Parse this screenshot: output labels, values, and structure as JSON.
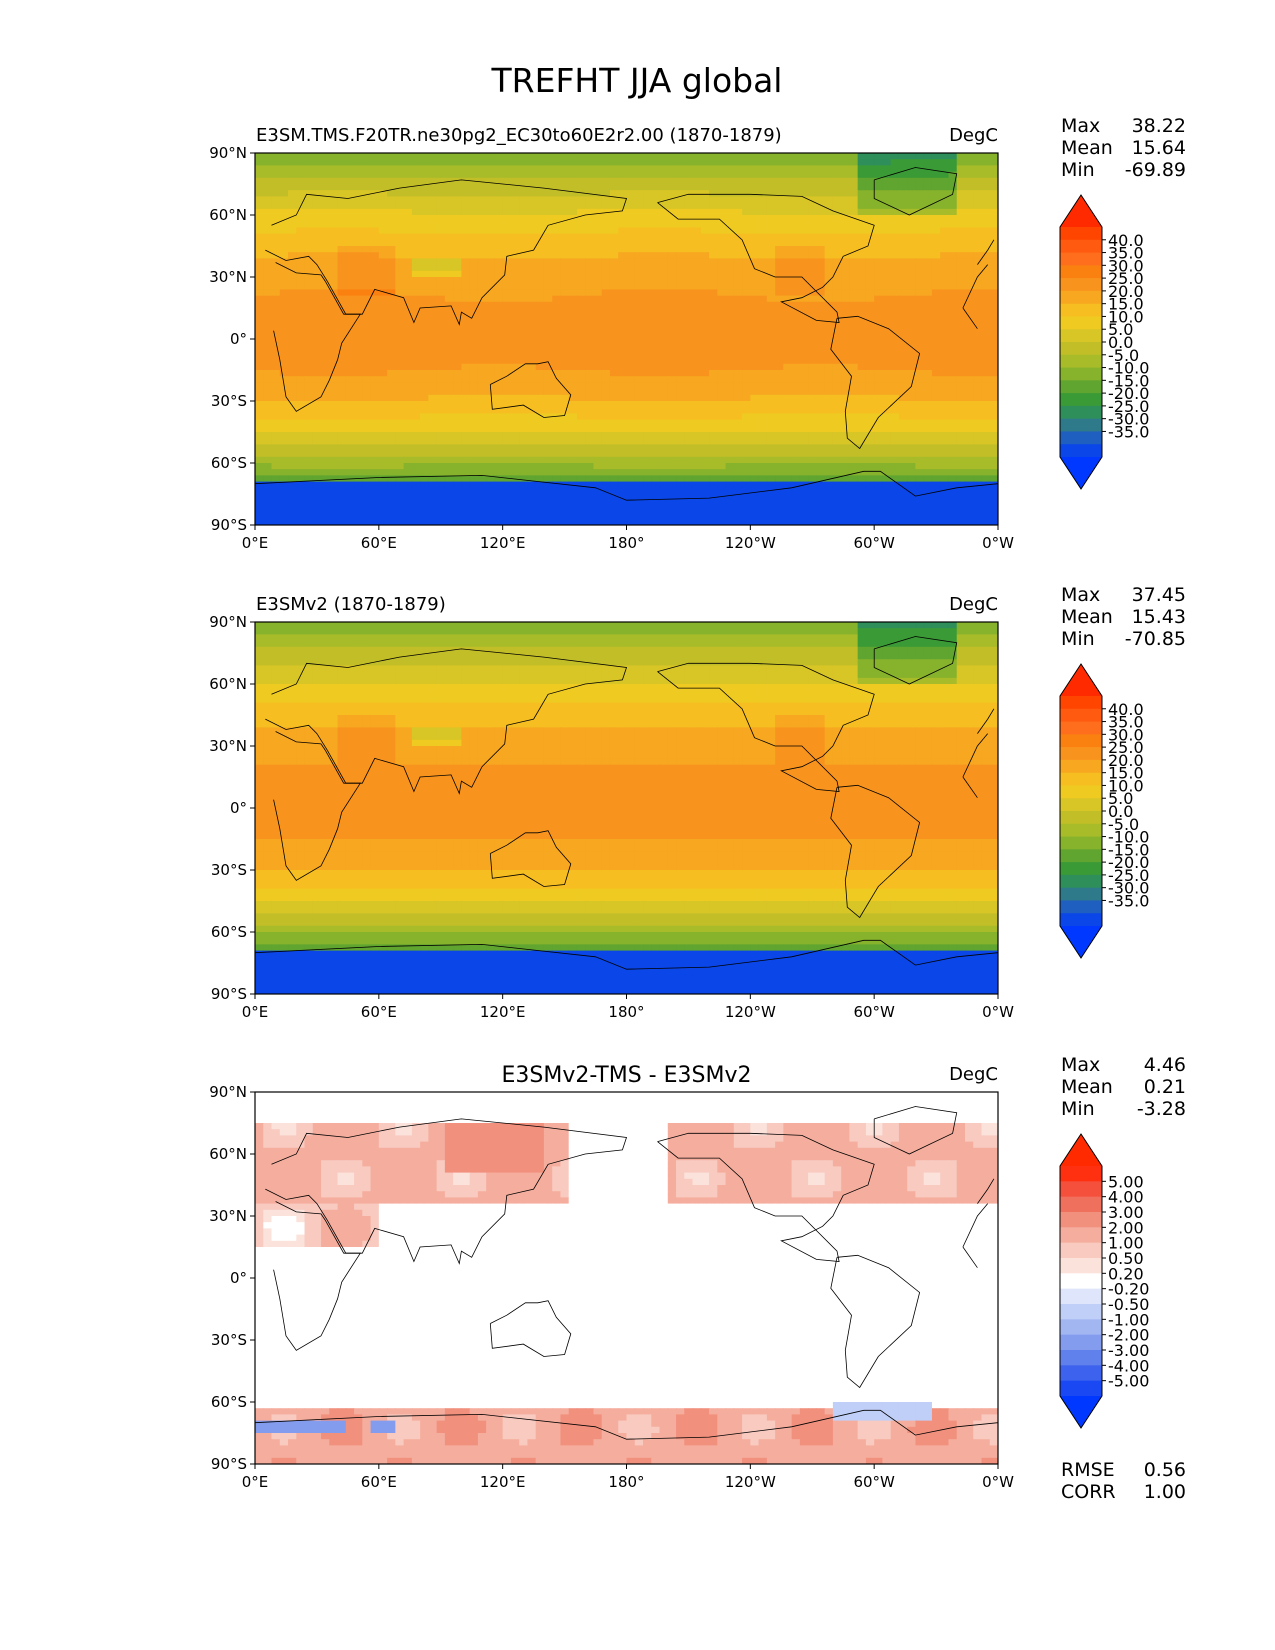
{
  "figure": {
    "title": "TREFHT JJA global"
  },
  "chart_data": [
    {
      "type": "heatmap",
      "title": "E3SM.TMS.F20TR.ne30pg2_EC30to60E2r2.00 (1870-1879)",
      "title_position": "left",
      "units": "DegC",
      "x_ticks": [
        "0°E",
        "60°E",
        "120°E",
        "180°",
        "120°W",
        "60°W",
        "0°W"
      ],
      "y_ticks": [
        "90°N",
        "60°N",
        "30°N",
        "0°",
        "30°S",
        "60°S",
        "90°S"
      ],
      "xlim": [
        0,
        360
      ],
      "ylim": [
        -90,
        90
      ],
      "stats": [
        {
          "label": "Max",
          "value": "38.22"
        },
        {
          "label": "Mean",
          "value": "15.64"
        },
        {
          "label": "Min",
          "value": "-69.89"
        }
      ],
      "colorbar": {
        "labels": [
          "40.0",
          "35.0",
          "30.0",
          "25.0",
          "20.0",
          "15.0",
          "10.0",
          "5.0",
          "0.0",
          "-5.0",
          "-10.0",
          "-15.0",
          "-20.0",
          "-25.0",
          "-30.0",
          "-35.0"
        ],
        "colors": [
          "#ff4500",
          "#ff5a10",
          "#ff6e1c",
          "#fa8010",
          "#f8941e",
          "#f7a720",
          "#f6be20",
          "#efcb22",
          "#d8c526",
          "#c2be28",
          "#a8bc2a",
          "#86b22c",
          "#5fa530",
          "#3a9a36",
          "#2f8f5a",
          "#2f7a8a",
          "#1f5fbf",
          "#0a46e8"
        ],
        "max_color": "#ff2a00",
        "min_color": "#0038ff"
      }
    },
    {
      "type": "heatmap",
      "title": "E3SMv2 (1870-1879)",
      "title_position": "left",
      "units": "DegC",
      "x_ticks": [
        "0°E",
        "60°E",
        "120°E",
        "180°",
        "120°W",
        "60°W",
        "0°W"
      ],
      "y_ticks": [
        "90°N",
        "60°N",
        "30°N",
        "0°",
        "30°S",
        "60°S",
        "90°S"
      ],
      "xlim": [
        0,
        360
      ],
      "ylim": [
        -90,
        90
      ],
      "stats": [
        {
          "label": "Max",
          "value": "37.45"
        },
        {
          "label": "Mean",
          "value": "15.43"
        },
        {
          "label": "Min",
          "value": "-70.85"
        }
      ],
      "colorbar": {
        "labels": [
          "40.0",
          "35.0",
          "30.0",
          "25.0",
          "20.0",
          "15.0",
          "10.0",
          "5.0",
          "0.0",
          "-5.0",
          "-10.0",
          "-15.0",
          "-20.0",
          "-25.0",
          "-30.0",
          "-35.0"
        ],
        "colors": [
          "#ff4500",
          "#ff5a10",
          "#ff6e1c",
          "#fa8010",
          "#f8941e",
          "#f7a720",
          "#f6be20",
          "#efcb22",
          "#d8c526",
          "#c2be28",
          "#a8bc2a",
          "#86b22c",
          "#5fa530",
          "#3a9a36",
          "#2f8f5a",
          "#2f7a8a",
          "#1f5fbf",
          "#0a46e8"
        ],
        "max_color": "#ff2a00",
        "min_color": "#0038ff"
      }
    },
    {
      "type": "heatmap",
      "title": "E3SMv2-TMS - E3SMv2",
      "title_position": "center",
      "units": "DegC",
      "x_ticks": [
        "0°E",
        "60°E",
        "120°E",
        "180°",
        "120°W",
        "60°W",
        "0°W"
      ],
      "y_ticks": [
        "90°N",
        "60°N",
        "30°N",
        "0°",
        "30°S",
        "60°S",
        "90°S"
      ],
      "xlim": [
        0,
        360
      ],
      "ylim": [
        -90,
        90
      ],
      "stats": [
        {
          "label": "Max",
          "value": "4.46"
        },
        {
          "label": "Mean",
          "value": "0.21"
        },
        {
          "label": "Min",
          "value": "-3.28"
        }
      ],
      "extra_stats": [
        {
          "label": "RMSE",
          "value": "0.56"
        },
        {
          "label": "CORR",
          "value": "1.00"
        }
      ],
      "colorbar": {
        "labels": [
          "5.00",
          "4.00",
          "3.00",
          "2.00",
          "1.00",
          "0.50",
          "0.20",
          "-0.20",
          "-0.50",
          "-1.00",
          "-2.00",
          "-3.00",
          "-4.00",
          "-5.00"
        ],
        "colors": [
          "#ff3010",
          "#f5503c",
          "#f0705e",
          "#f2907e",
          "#f5ae9e",
          "#f8cac0",
          "#fbe3dc",
          "#ffffff",
          "#dfe6fb",
          "#c0cff7",
          "#a2b6f2",
          "#839cee",
          "#6080ec",
          "#3c62ee",
          "#1a48f2"
        ],
        "max_color": "#ff2a00",
        "min_color": "#0038ff"
      }
    }
  ]
}
